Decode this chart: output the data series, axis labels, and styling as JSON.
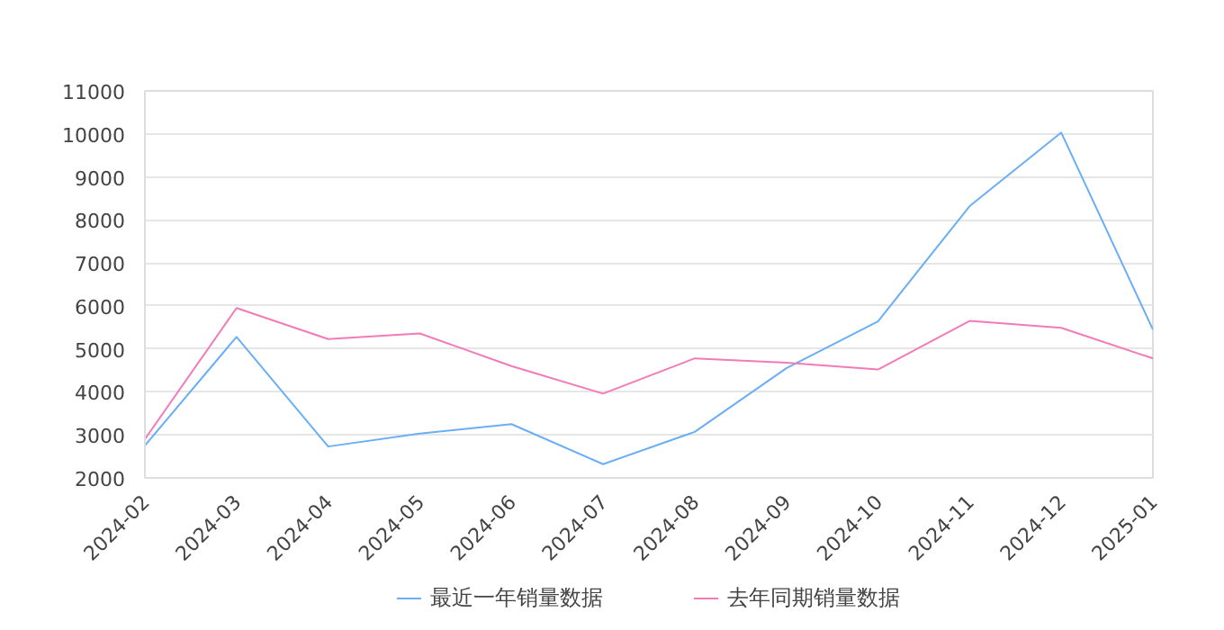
{
  "chart_data": {
    "type": "line",
    "categories": [
      "2024-02",
      "2024-03",
      "2024-04",
      "2024-05",
      "2024-06",
      "2024-07",
      "2024-08",
      "2024-09",
      "2024-10",
      "2024-11",
      "2024-12",
      "2025-01"
    ],
    "series": [
      {
        "name": "最近一年销量数据",
        "color": "#6aaef5",
        "values": [
          2750,
          5280,
          2730,
          3030,
          3250,
          2320,
          3070,
          4550,
          5640,
          8320,
          10030,
          5450
        ]
      },
      {
        "name": "去年同期销量数据",
        "color": "#f37ab8",
        "values": [
          2900,
          5950,
          5230,
          5360,
          4600,
          3960,
          4780,
          4680,
          4520,
          5650,
          5490,
          4780
        ]
      }
    ],
    "ylim": [
      2000,
      11000
    ],
    "yticks": [
      2000,
      3000,
      4000,
      5000,
      6000,
      7000,
      8000,
      9000,
      10000,
      11000
    ],
    "grid": "y",
    "legend": "bottom",
    "marker": "none",
    "line_style": "solid"
  }
}
